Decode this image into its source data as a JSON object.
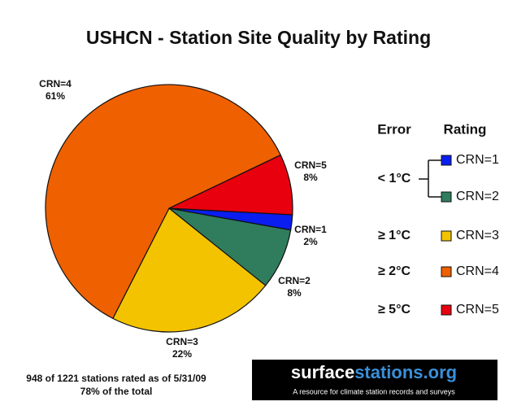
{
  "chart_data": {
    "type": "pie",
    "title": "USHCN - Station Site Quality by Rating",
    "categories": [
      "CRN=1",
      "CRN=2",
      "CRN=3",
      "CRN=4",
      "CRN=5"
    ],
    "values": [
      2,
      8,
      22,
      61,
      8
    ],
    "value_labels": [
      "2%",
      "8%",
      "22%",
      "61%",
      "8%"
    ],
    "colors": [
      "#0a1ef0",
      "#2f7d5c",
      "#f3c300",
      "#ef6000",
      "#e8000e"
    ],
    "legend_headers": [
      "Error",
      "Rating"
    ],
    "error_labels": [
      "< 1°C",
      "≥ 1°C",
      "≥ 2°C",
      "≥ 5°C"
    ],
    "footnote": [
      "948 of 1221 stations rated as of 5/31/09",
      "78% of the total"
    ],
    "logo": {
      "parts": [
        "surface",
        "stations.org"
      ],
      "tagline": "A resource for climate station records and surveys"
    }
  }
}
